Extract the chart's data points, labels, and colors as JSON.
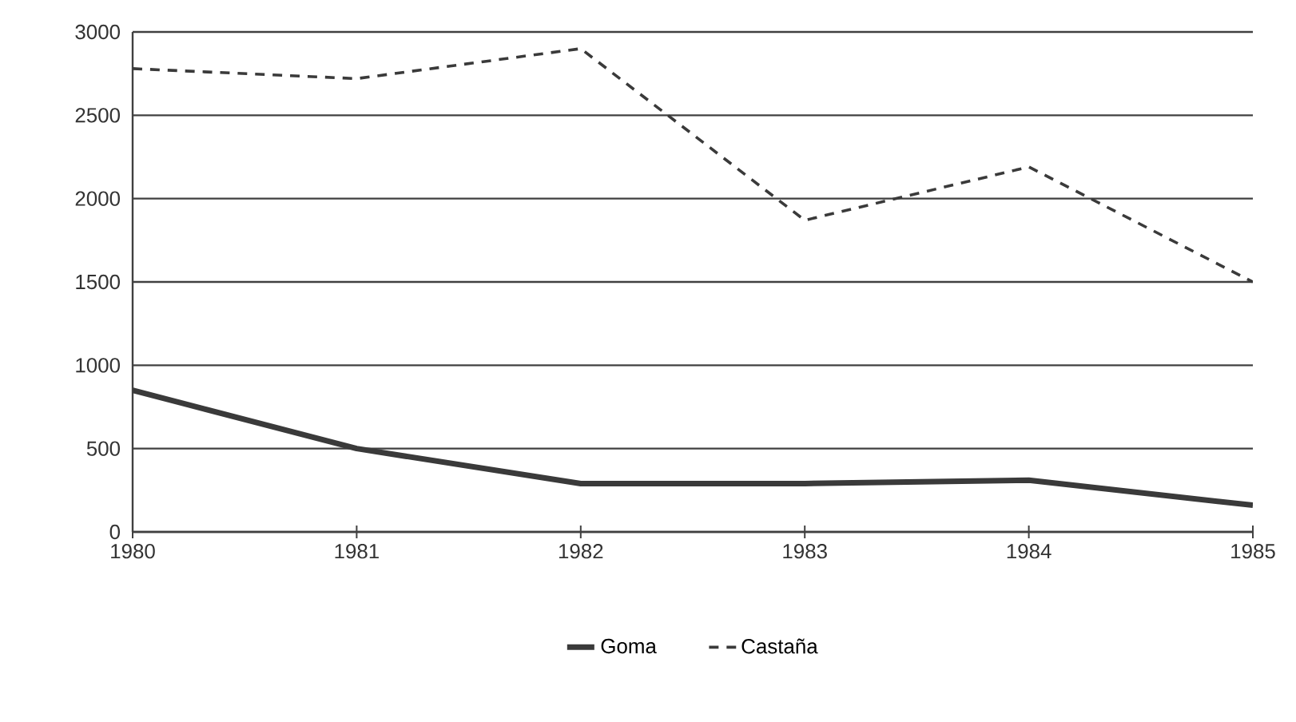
{
  "chart_data": {
    "type": "line",
    "x": [
      1980,
      1981,
      1982,
      1983,
      1984,
      1985
    ],
    "series": [
      {
        "name": "Goma",
        "color": "#3a3a3a",
        "line_style": "solid",
        "values": [
          850,
          500,
          290,
          290,
          310,
          160
        ]
      },
      {
        "name": "Castaña",
        "color": "#3a3a3a",
        "line_style": "dashed",
        "values": [
          2780,
          2720,
          2900,
          1870,
          2190,
          1500
        ]
      }
    ],
    "xlim": [
      1980,
      1985
    ],
    "xticks": [
      1980,
      1981,
      1982,
      1983,
      1984,
      1985
    ],
    "ylim": [
      0,
      3000
    ],
    "yticks": [
      0,
      500,
      1000,
      1500,
      2000,
      2500,
      3000
    ],
    "grid": "y",
    "legend": "bottom",
    "marker": "none"
  }
}
